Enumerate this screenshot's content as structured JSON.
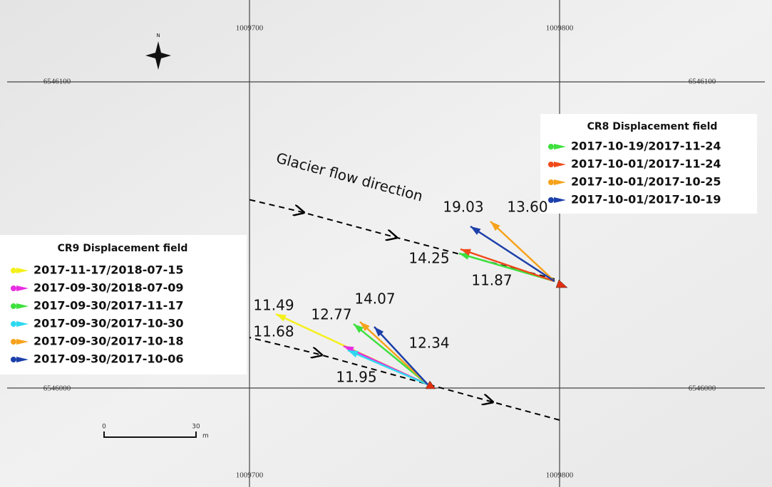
{
  "grid": {
    "x_top": [
      "1009700",
      "1009800"
    ],
    "x_bottom": [
      "1009700",
      "1009800"
    ],
    "y_left": [
      "6546100",
      "6546000"
    ],
    "y_right": [
      "6546100",
      "6546000"
    ]
  },
  "north": "N",
  "scale": {
    "start": "0",
    "end": "30",
    "unit": "m"
  },
  "flow_label": "Glacier flow direction",
  "cr8": {
    "title": "CR8 Displacement  field",
    "entries": [
      {
        "name": "2017-10-19/2017-11-24",
        "color": "#3ee03e"
      },
      {
        "name": "2017-10-01/2017-11-24",
        "color": "#f04a1a"
      },
      {
        "name": "2017-10-01/2017-10-25",
        "color": "#f7a21b"
      },
      {
        "name": "2017-10-01/2017-10-19",
        "color": "#1c3faa"
      }
    ],
    "labels": [
      "19.03",
      "13.60",
      "14.25",
      "11.87"
    ]
  },
  "cr9": {
    "title": "CR9 Displacement  field",
    "entries": [
      {
        "name": "2017-11-17/2018-07-15",
        "color": "#f4f01a"
      },
      {
        "name": "2017-09-30/2018-07-09",
        "color": "#e82ce0"
      },
      {
        "name": "2017-09-30/2017-11-17",
        "color": "#3ee03e"
      },
      {
        "name": "2017-09-30/2017-10-30",
        "color": "#2ed8f0"
      },
      {
        "name": "2017-09-30/2017-10-18",
        "color": "#f7a21b"
      },
      {
        "name": "2017-09-30/2017-10-06",
        "color": "#1c3faa"
      }
    ],
    "labels": [
      "11.49",
      "11.68",
      "12.77",
      "14.07",
      "12.34",
      "11.95"
    ]
  }
}
